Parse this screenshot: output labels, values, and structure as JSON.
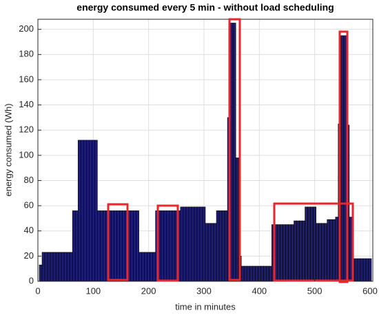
{
  "chart_data": {
    "type": "bar",
    "title": "energy consumed every 5 min - without load scheduling",
    "xlabel": "time in minutes",
    "ylabel": "energy consumed (Wh)",
    "color": "#1c1c72",
    "edgecolor": "#000000",
    "grid": true,
    "xlim": [
      0,
      605
    ],
    "ylim": [
      0,
      208
    ],
    "xticks": [
      0,
      100,
      200,
      300,
      400,
      500,
      600
    ],
    "yticks": [
      0,
      20,
      40,
      60,
      80,
      100,
      120,
      140,
      160,
      180,
      200
    ],
    "x": [
      5,
      10,
      15,
      20,
      25,
      30,
      35,
      40,
      45,
      50,
      55,
      60,
      65,
      70,
      75,
      80,
      85,
      90,
      95,
      100,
      105,
      110,
      115,
      120,
      125,
      130,
      135,
      140,
      145,
      150,
      155,
      160,
      165,
      170,
      175,
      180,
      185,
      190,
      195,
      200,
      205,
      210,
      215,
      220,
      225,
      230,
      235,
      240,
      245,
      250,
      255,
      260,
      265,
      270,
      275,
      280,
      285,
      290,
      295,
      300,
      305,
      310,
      315,
      320,
      325,
      330,
      335,
      340,
      345,
      350,
      355,
      360,
      365,
      370,
      375,
      380,
      385,
      390,
      395,
      400,
      405,
      410,
      415,
      420,
      425,
      430,
      435,
      440,
      445,
      450,
      455,
      460,
      465,
      470,
      475,
      480,
      485,
      490,
      495,
      500,
      505,
      510,
      515,
      520,
      525,
      530,
      535,
      540,
      545,
      550,
      555,
      560,
      565,
      570,
      575,
      580,
      585,
      590,
      595,
      600
    ],
    "values": [
      13,
      23,
      23,
      23,
      23,
      23,
      23,
      23,
      23,
      23,
      23,
      23,
      56,
      56,
      112,
      112,
      112,
      112,
      112,
      112,
      112,
      56,
      56,
      56,
      56,
      56,
      56,
      56,
      56,
      56,
      56,
      56,
      56,
      56,
      56,
      56,
      23,
      23,
      23,
      23,
      23,
      23,
      56,
      56,
      56,
      56,
      56,
      56,
      56,
      56,
      56,
      59,
      59,
      59,
      59,
      59,
      59,
      59,
      59,
      59,
      46,
      46,
      46,
      46,
      56,
      56,
      56,
      56,
      130,
      205,
      205,
      98,
      20,
      12,
      12,
      12,
      12,
      12,
      12,
      12,
      12,
      12,
      12,
      12,
      45,
      45,
      45,
      45,
      45,
      45,
      45,
      45,
      48,
      48,
      48,
      48,
      59,
      59,
      59,
      59,
      46,
      46,
      46,
      46,
      49,
      49,
      49,
      51,
      125,
      195,
      195,
      124,
      51,
      18,
      18,
      18,
      18,
      18,
      18,
      18
    ]
  }
}
